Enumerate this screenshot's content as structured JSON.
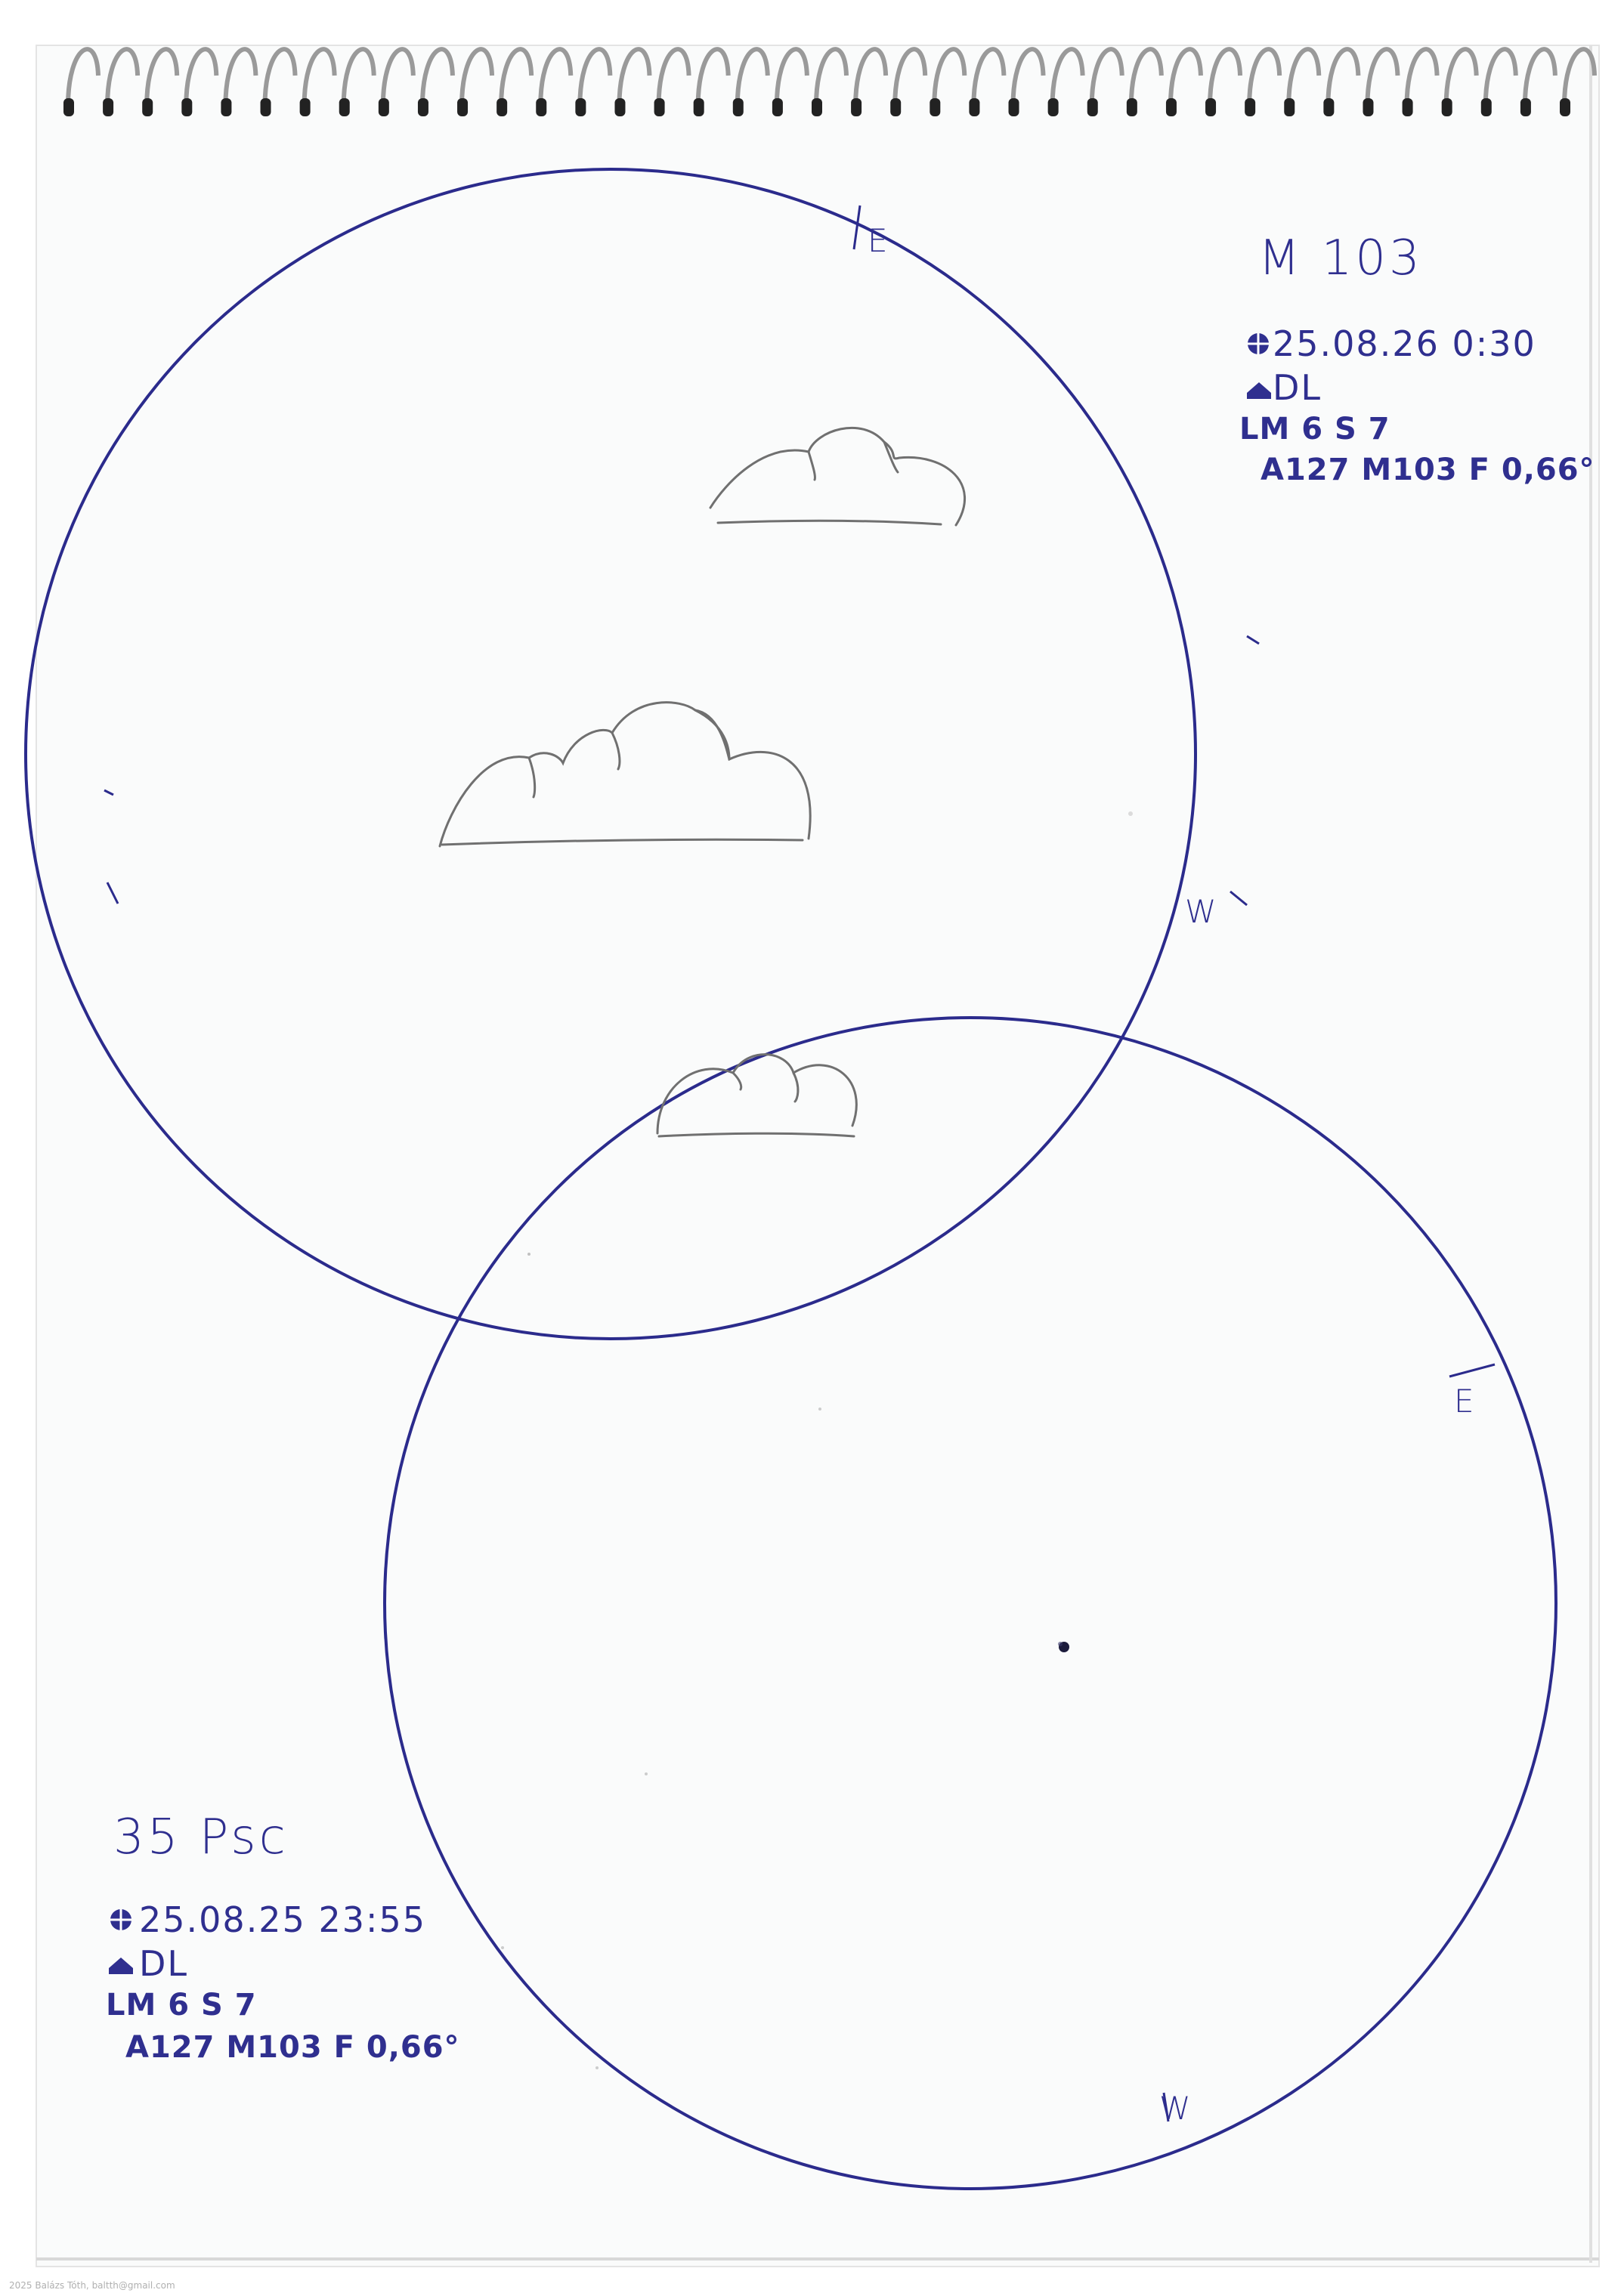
{
  "sketch1": {
    "title": "M 103",
    "datetime": "25.08.26 0:30",
    "site": "DL",
    "conditions": "LM 6 S 7",
    "instrument": "A127 M103 F 0,66°",
    "east_label": "E",
    "west_label": "W",
    "date_icon": "crosshair-icon",
    "site_icon": "house-icon"
  },
  "sketch2": {
    "title": "35 Psc",
    "datetime": "25.08.25 23:55",
    "site": "DL",
    "conditions": "LM 6 S 7",
    "instrument": "A127 M103 F 0,66°",
    "east_label": "E",
    "west_label": "W",
    "date_icon": "crosshair-icon",
    "site_icon": "house-icon"
  },
  "copyright": "2025 Balázs Tóth, baltth@gmail.com",
  "colors": {
    "paper": "#ffffff",
    "ink": "#2f2f8f",
    "pencil": "#6e6e6e",
    "spiral": "#8a8a8a"
  }
}
